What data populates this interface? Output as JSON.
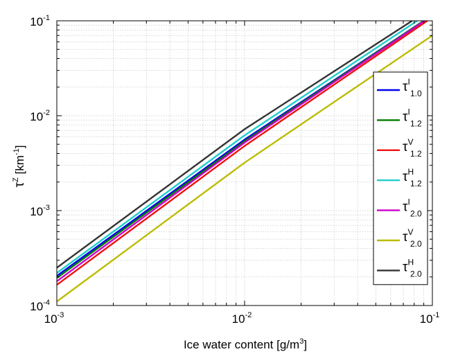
{
  "chart_data": {
    "type": "line",
    "xscale": "log",
    "yscale": "log",
    "xlim": [
      0.001,
      0.1
    ],
    "ylim": [
      0.0001,
      0.1
    ],
    "grid": true,
    "legend_position": "right",
    "xlabel": "Ice water content [g/m",
    "xlabel_sup": "3",
    "xlabel_end": "]",
    "ylabel_sym": "τ",
    "ylabel_sup": "Z",
    "ylabel_unit": " [km",
    "ylabel_unit_sup": "-1",
    "ylabel_end": "]",
    "x_ticks": [
      {
        "base": "10",
        "exp": "-3"
      },
      {
        "base": "10",
        "exp": "-2"
      },
      {
        "base": "10",
        "exp": "-1"
      }
    ],
    "y_ticks": [
      {
        "base": "10",
        "exp": "-4"
      },
      {
        "base": "10",
        "exp": "-3"
      },
      {
        "base": "10",
        "exp": "-2"
      },
      {
        "base": "10",
        "exp": "-1"
      }
    ],
    "series": [
      {
        "sym": "τ",
        "sup": "I",
        "sub": "1.0",
        "color": "#0000ee",
        "x": [
          0.001,
          0.01,
          0.09
        ],
        "y": [
          0.000205,
          0.0056,
          0.1
        ]
      },
      {
        "sym": "τ",
        "sup": "I",
        "sub": "1.2",
        "color": "#007a00",
        "x": [
          0.001,
          0.01,
          0.09
        ],
        "y": [
          0.000195,
          0.0054,
          0.1
        ]
      },
      {
        "sym": "τ",
        "sup": "V",
        "sub": "1.2",
        "color": "#ee1111",
        "x": [
          0.001,
          0.01,
          0.094
        ],
        "y": [
          0.000165,
          0.0048,
          0.1
        ]
      },
      {
        "sym": "τ",
        "sup": "H",
        "sub": "1.2",
        "color": "#22cccc",
        "x": [
          0.001,
          0.01,
          0.083
        ],
        "y": [
          0.00022,
          0.0062,
          0.1
        ]
      },
      {
        "sym": "τ",
        "sup": "I",
        "sub": "2.0",
        "color": "#cc00cc",
        "x": [
          0.001,
          0.01,
          0.091
        ],
        "y": [
          0.00018,
          0.0052,
          0.1
        ]
      },
      {
        "sym": "τ",
        "sup": "V",
        "sub": "2.0",
        "color": "#bbbb00",
        "x": [
          0.001,
          0.01,
          0.1
        ],
        "y": [
          0.00011,
          0.0032,
          0.07
        ]
      },
      {
        "sym": "τ",
        "sup": "H",
        "sub": "2.0",
        "color": "#333333",
        "x": [
          0.001,
          0.01,
          0.078
        ],
        "y": [
          0.00025,
          0.0072,
          0.1
        ]
      }
    ]
  }
}
